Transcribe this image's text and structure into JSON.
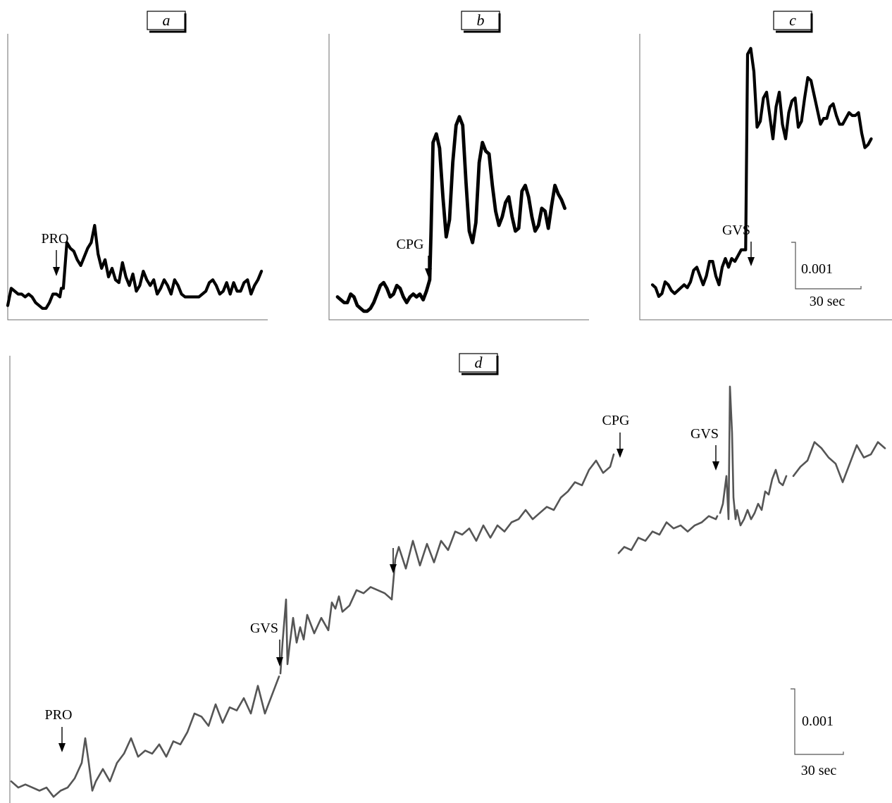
{
  "figure": {
    "trace_color_top": "#000000",
    "trace_color_bottom": "#555555",
    "panels": [
      {
        "id": "a",
        "label": "a",
        "events": [
          {
            "text": "PRO",
            "t": 75,
            "at_value": 0.0009
          }
        ],
        "scale_bar": null,
        "series": {
          "t": [
            0,
            5,
            10,
            15,
            20,
            25,
            30,
            35,
            40,
            45,
            50,
            55,
            60,
            65,
            70,
            75,
            77,
            80,
            85,
            90,
            95,
            100,
            105,
            110,
            115,
            120,
            125,
            130,
            135,
            140,
            145,
            150,
            155,
            160,
            165,
            170,
            175,
            180,
            185,
            190,
            195,
            200,
            205,
            210,
            215,
            220,
            225,
            230,
            235,
            240,
            245,
            250,
            255,
            260,
            265,
            270,
            275,
            280,
            285,
            290,
            295,
            300,
            305,
            310,
            315,
            320,
            325,
            330,
            335,
            340,
            345,
            350,
            355,
            360,
            365
          ],
          "v": [
            0.0005,
            0.0011,
            0.001,
            0.0009,
            0.0009,
            0.0008,
            0.0009,
            0.0008,
            0.0006,
            0.0005,
            0.0004,
            0.0004,
            0.0006,
            0.0009,
            0.0009,
            0.0008,
            0.0011,
            0.0011,
            0.0027,
            0.0025,
            0.0024,
            0.0021,
            0.0019,
            0.0022,
            0.0025,
            0.0027,
            0.0033,
            0.0023,
            0.0018,
            0.0021,
            0.0015,
            0.0018,
            0.0014,
            0.0013,
            0.002,
            0.0015,
            0.0012,
            0.0016,
            0.001,
            0.0012,
            0.0017,
            0.0014,
            0.0012,
            0.0014,
            0.0009,
            0.0011,
            0.0014,
            0.0012,
            0.0009,
            0.0014,
            0.0012,
            0.0009,
            0.0008,
            0.0008,
            0.0008,
            0.0008,
            0.0008,
            0.0009,
            0.001,
            0.0013,
            0.0014,
            0.0012,
            0.0009,
            0.001,
            0.0013,
            0.0009,
            0.0013,
            0.001,
            0.001,
            0.0013,
            0.0014,
            0.0009,
            0.0012,
            0.0014,
            0.0017
          ]
        }
      },
      {
        "id": "b",
        "label": "b",
        "events": [
          {
            "text": "CPG",
            "t": 142,
            "at_value": 0.001
          }
        ],
        "scale_bar": null,
        "series": {
          "t": [
            0,
            5,
            10,
            15,
            20,
            25,
            30,
            35,
            40,
            45,
            50,
            55,
            60,
            65,
            70,
            75,
            80,
            85,
            90,
            95,
            100,
            105,
            110,
            115,
            120,
            125,
            130,
            135,
            140,
            142,
            145,
            150,
            155,
            160,
            165,
            170,
            175,
            180,
            185,
            190,
            195,
            200,
            205,
            210,
            215,
            220,
            225,
            230,
            235,
            240,
            245,
            250,
            255,
            260,
            265,
            270,
            275,
            280,
            285,
            290,
            295,
            300,
            305,
            310,
            315,
            320,
            325,
            330,
            335,
            340,
            345
          ],
          "v": [
            0.0008,
            0.0007,
            0.0006,
            0.0006,
            0.0009,
            0.0008,
            0.0005,
            0.0004,
            0.0003,
            0.0003,
            0.0004,
            0.0006,
            0.0009,
            0.0012,
            0.0013,
            0.0011,
            0.0008,
            0.0009,
            0.0012,
            0.0011,
            0.0008,
            0.0006,
            0.0008,
            0.0009,
            0.0008,
            0.0009,
            0.0007,
            0.001,
            0.0014,
            0.0031,
            0.0062,
            0.0065,
            0.006,
            0.0043,
            0.0029,
            0.0035,
            0.0055,
            0.0068,
            0.0071,
            0.0068,
            0.0048,
            0.0031,
            0.0027,
            0.0034,
            0.0055,
            0.0062,
            0.0059,
            0.0058,
            0.0047,
            0.0038,
            0.0033,
            0.0036,
            0.0041,
            0.0043,
            0.0036,
            0.0031,
            0.0032,
            0.0045,
            0.0047,
            0.0043,
            0.0036,
            0.0031,
            0.0033,
            0.0039,
            0.0038,
            0.0032,
            0.004,
            0.0047,
            0.0044,
            0.0042,
            0.0039
          ]
        }
      },
      {
        "id": "c",
        "label": "c",
        "events": [
          {
            "text": "GVS",
            "t": 147,
            "at_value": 0.0024
          }
        ],
        "scale_bar": {
          "value_label": "0.001",
          "time_label": "30 sec",
          "value": 0.001,
          "time_s": 30
        },
        "series": {
          "t": [
            0,
            5,
            10,
            15,
            20,
            25,
            30,
            35,
            40,
            45,
            50,
            55,
            60,
            65,
            70,
            75,
            80,
            85,
            90,
            95,
            100,
            105,
            110,
            115,
            120,
            125,
            130,
            135,
            140,
            147,
            150,
            155,
            160,
            165,
            170,
            175,
            180,
            185,
            190,
            195,
            200,
            205,
            210,
            215,
            220,
            225,
            230,
            235,
            240,
            245,
            250,
            255,
            260,
            265,
            270,
            275,
            280,
            285,
            290,
            295,
            300,
            305,
            310,
            315,
            320,
            325,
            330,
            335,
            340,
            345
          ],
          "v": [
            0.0012,
            0.0011,
            0.0008,
            0.0009,
            0.0013,
            0.0012,
            0.001,
            0.0009,
            0.001,
            0.0011,
            0.0012,
            0.0011,
            0.0013,
            0.0017,
            0.0018,
            0.0015,
            0.0012,
            0.0015,
            0.002,
            0.002,
            0.0015,
            0.0012,
            0.0018,
            0.0021,
            0.0018,
            0.0021,
            0.002,
            0.0022,
            0.0024,
            0.0024,
            0.0091,
            0.0093,
            0.0085,
            0.0066,
            0.0068,
            0.0076,
            0.0078,
            0.007,
            0.0062,
            0.0073,
            0.0078,
            0.0067,
            0.0062,
            0.0071,
            0.0075,
            0.0076,
            0.0066,
            0.0068,
            0.0076,
            0.0083,
            0.0082,
            0.0077,
            0.0072,
            0.0067,
            0.0069,
            0.0069,
            0.0073,
            0.0074,
            0.007,
            0.0067,
            0.0067,
            0.0069,
            0.0071,
            0.007,
            0.007,
            0.0071,
            0.0064,
            0.0059,
            0.006,
            0.0062
          ]
        }
      },
      {
        "id": "d",
        "label": "d",
        "events": [
          {
            "text": "PRO",
            "t": 70,
            "at_value": 0.0002
          },
          {
            "text": "GVS",
            "t": 382,
            "at_value": 0.0042
          },
          {
            "text": "",
            "t": 540,
            "at_value": 0.0079
          },
          {
            "text": "CPG",
            "t": 862,
            "at_value": 0.0115
          },
          {
            "text": "GVS",
            "t": 1002,
            "at_value": 0.0093
          }
        ],
        "scale_bar": {
          "value_label": "0.001",
          "time_label": "30 sec",
          "value": 0.001,
          "time_s": 30
        },
        "series": [
          {
            "t": [
              0,
              10,
              20,
              30,
              40,
              50,
              60,
              70,
              80,
              90,
              100,
              105,
              110,
              115,
              120,
              130,
              140,
              150,
              160,
              170,
              180,
              190,
              200,
              210,
              220,
              230,
              240,
              250,
              260,
              270,
              280,
              290,
              300,
              310,
              320,
              330,
              340,
              350,
              360,
              370,
              380
            ],
            "v": [
              0.0007,
              0.0005,
              0.0006,
              0.0005,
              0.0004,
              0.0005,
              0.0002,
              0.0004,
              0.0005,
              0.0008,
              0.0013,
              0.0021,
              0.0013,
              0.0004,
              0.0007,
              0.0011,
              0.0007,
              0.0013,
              0.0016,
              0.0021,
              0.0015,
              0.0017,
              0.0016,
              0.0019,
              0.0015,
              0.002,
              0.0019,
              0.0023,
              0.0029,
              0.0028,
              0.0025,
              0.0032,
              0.0026,
              0.0031,
              0.003,
              0.0034,
              0.0029,
              0.0038,
              0.0029,
              0.0035,
              0.0041
            ]
          },
          {
            "t": [
              382,
              385,
              390,
              392,
              395,
              400,
              405,
              410,
              415,
              420,
              430,
              440,
              450,
              455,
              460,
              465,
              470,
              480,
              490,
              500,
              510,
              520,
              530,
              540
            ],
            "v": [
              0.0042,
              0.0052,
              0.0066,
              0.0045,
              0.0051,
              0.006,
              0.0052,
              0.0057,
              0.0053,
              0.0061,
              0.0055,
              0.006,
              0.0056,
              0.0065,
              0.0063,
              0.0067,
              0.0062,
              0.0064,
              0.0069,
              0.0068,
              0.007,
              0.0069,
              0.0068,
              0.0066
            ]
          },
          {
            "t": [
              540,
              545,
              550,
              560,
              570,
              580,
              590,
              600,
              610,
              620,
              630,
              640,
              650,
              660,
              670,
              680,
              690,
              700,
              710,
              720,
              730,
              740,
              750,
              760,
              770,
              780,
              790,
              800,
              810,
              820,
              830,
              840,
              850,
              855
            ],
            "v": [
              0.0066,
              0.0079,
              0.0083,
              0.0076,
              0.0085,
              0.0077,
              0.0084,
              0.0078,
              0.0085,
              0.0082,
              0.0088,
              0.0087,
              0.0089,
              0.0085,
              0.009,
              0.0086,
              0.009,
              0.0088,
              0.0091,
              0.0092,
              0.0095,
              0.0092,
              0.0094,
              0.0096,
              0.0095,
              0.0099,
              0.0101,
              0.0104,
              0.0103,
              0.0108,
              0.0111,
              0.0107,
              0.0109,
              0.0113
            ]
          },
          {
            "t": [
              862,
              870,
              880,
              890,
              900,
              910,
              920,
              930,
              940,
              950,
              960,
              970,
              980,
              990,
              1000,
              1002
            ],
            "v": [
              0.0081,
              0.0083,
              0.0082,
              0.0086,
              0.0085,
              0.0088,
              0.0087,
              0.0091,
              0.0089,
              0.009,
              0.0088,
              0.009,
              0.0091,
              0.0093,
              0.0092,
              0.0093
            ]
          },
          {
            "t": [
              1006,
              1010,
              1015,
              1018,
              1020,
              1023,
              1025,
              1028,
              1030,
              1035,
              1040,
              1045,
              1050,
              1055,
              1060,
              1065,
              1070,
              1075,
              1080,
              1085,
              1090,
              1095,
              1100
            ],
            "v": [
              0.0094,
              0.0097,
              0.0106,
              0.0092,
              0.0135,
              0.012,
              0.0099,
              0.0092,
              0.0095,
              0.009,
              0.0092,
              0.0095,
              0.0092,
              0.0094,
              0.0097,
              0.0095,
              0.0101,
              0.01,
              0.0105,
              0.0108,
              0.0104,
              0.0103,
              0.0106
            ]
          },
          {
            "t": [
              1110,
              1120,
              1130,
              1140,
              1150,
              1160,
              1170,
              1180,
              1190,
              1200,
              1210,
              1220,
              1230,
              1240
            ],
            "v": [
              0.0106,
              0.0109,
              0.0111,
              0.0117,
              0.0115,
              0.0112,
              0.011,
              0.0104,
              0.011,
              0.0116,
              0.0112,
              0.0113,
              0.0117,
              0.0115
            ]
          }
        ]
      }
    ]
  },
  "chart_data": [
    {
      "type": "line",
      "panel": "a",
      "xlabel": "",
      "ylabel": "",
      "xlim": [
        0,
        370
      ],
      "ylim": [
        0,
        0.01
      ],
      "grid": false,
      "annotations": [
        "PRO"
      ]
    },
    {
      "type": "line",
      "panel": "b",
      "xlabel": "",
      "ylabel": "",
      "xlim": [
        0,
        370
      ],
      "ylim": [
        0,
        0.01
      ],
      "grid": false,
      "annotations": [
        "CPG"
      ]
    },
    {
      "type": "line",
      "panel": "c",
      "xlabel": "",
      "ylabel": "",
      "xlim": [
        0,
        360
      ],
      "ylim": [
        0,
        0.0098
      ],
      "grid": false,
      "annotations": [
        "GVS"
      ],
      "scale_bar": [
        "0.001",
        "30 sec"
      ]
    },
    {
      "type": "line",
      "panel": "d",
      "xlabel": "",
      "ylabel": "",
      "xlim": [
        0,
        1250
      ],
      "ylim": [
        0,
        0.0145
      ],
      "grid": false,
      "annotations": [
        "PRO",
        "GVS",
        "CPG",
        "GVS"
      ],
      "scale_bar": [
        "0.001",
        "30 sec"
      ]
    }
  ]
}
